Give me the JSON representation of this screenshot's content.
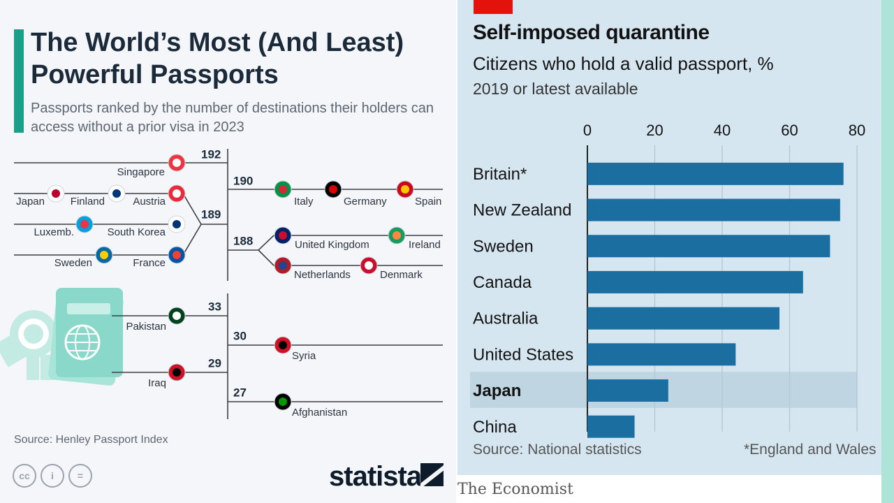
{
  "statista": {
    "title": "The World’s Most (And Least) Powerful Passports",
    "subtitle": "Passports ranked by the number of destinations their holders can access without a prior visa in 2023",
    "source": "Source: Henley Passport Index",
    "brand": "statista",
    "accent_color": "#18a088",
    "icons": [
      "creative-commons-icon",
      "attribution-icon",
      "no-derivatives-icon",
      "passport-illustration"
    ]
  },
  "economist": {
    "title": "Self-imposed quarantine",
    "subtitle": "Citizens who hold a valid passport, %",
    "note": "2019 or latest available",
    "source": "Source: National statistics",
    "footnote": "*England and Wales",
    "brand": "The Economist",
    "bar_color": "#1a6fa0",
    "tag_color": "#e3120b"
  },
  "chart_data": [
    {
      "type": "table",
      "title": "The World’s Most (And Least) Powerful Passports",
      "groups": [
        {
          "score": "192",
          "countries": [
            "Singapore"
          ]
        },
        {
          "score": "190",
          "countries": [
            "Italy",
            "Germany",
            "Spain"
          ]
        },
        {
          "score": "189",
          "countries": [
            "Japan",
            "Finland",
            "Austria",
            "Luxemb.",
            "South Korea",
            "Sweden",
            "France"
          ]
        },
        {
          "score": "188",
          "countries": [
            "United Kingdom",
            "Ireland",
            "Netherlands",
            "Denmark"
          ]
        },
        {
          "score": "33",
          "countries": [
            "Pakistan"
          ]
        },
        {
          "score": "30",
          "countries": [
            "Syria"
          ]
        },
        {
          "score": "29",
          "countries": [
            "Iraq"
          ]
        },
        {
          "score": "27",
          "countries": [
            "Afghanistan"
          ]
        }
      ]
    },
    {
      "type": "bar",
      "title": "Self-imposed quarantine",
      "orientation": "horizontal",
      "categories": [
        "Britain*",
        "New Zealand",
        "Sweden",
        "Canada",
        "Australia",
        "United States",
        "Japan",
        "China"
      ],
      "values": [
        76,
        75,
        72,
        64,
        57,
        44,
        24,
        14
      ],
      "highlight": "Japan",
      "xlim": [
        0,
        80
      ],
      "ticks": [
        0,
        20,
        40,
        60,
        80
      ],
      "grid": true
    }
  ]
}
